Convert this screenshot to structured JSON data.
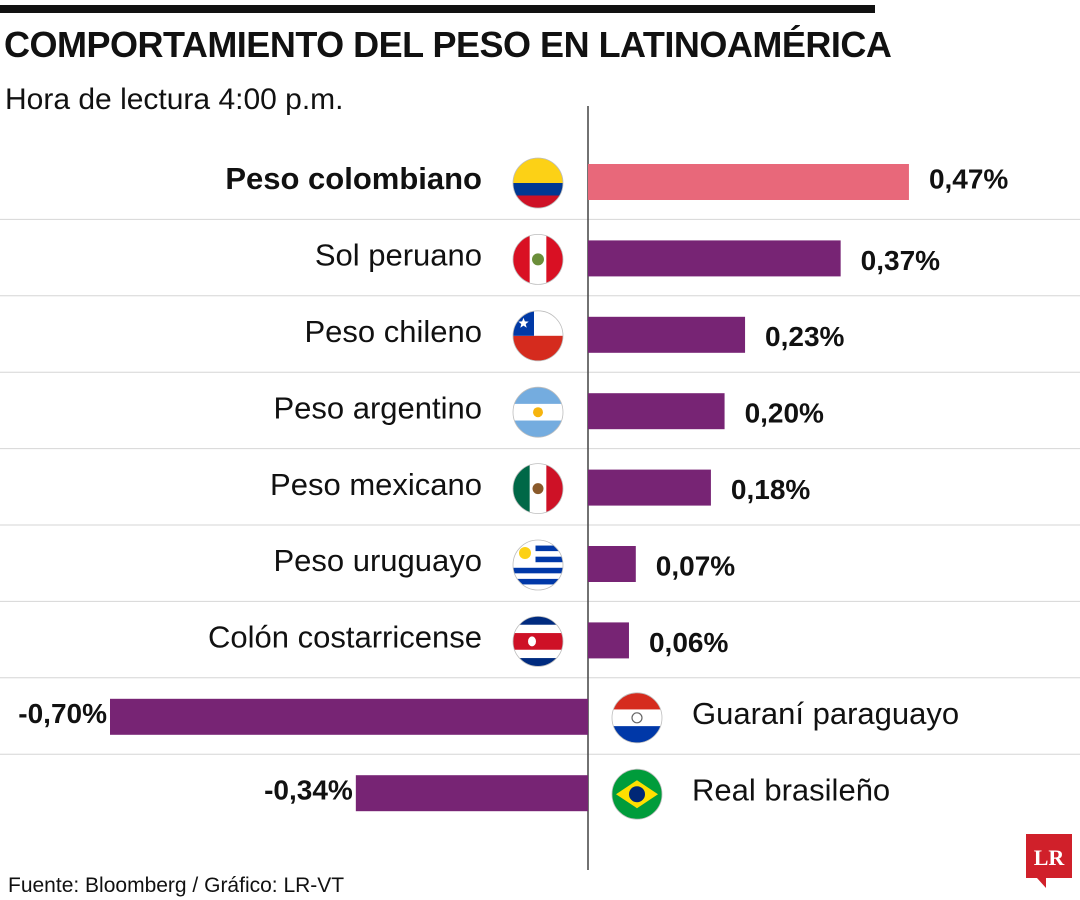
{
  "header": {
    "title": "COMPORTAMIENTO DEL PESO EN LATINOAMÉRICA",
    "subtitle": "Hora de lectura 4:00 p.m."
  },
  "footer": {
    "source": "Fuente: Bloomberg / Gráfico: LR-VT",
    "logo_text": "LR"
  },
  "colors": {
    "highlight": "#E8687A",
    "bar": "#772474",
    "logo": "#D0202A"
  },
  "chart_data": {
    "type": "bar",
    "orientation": "horizontal",
    "unit": "%",
    "highlight_category": "Peso colombiano",
    "categories": [
      "Peso colombiano",
      "Sol peruano",
      "Peso chileno",
      "Peso argentino",
      "Peso mexicano",
      "Peso uruguayo",
      "Colón costarricense",
      "Guaraní paraguayo",
      "Real brasileño"
    ],
    "values": [
      0.47,
      0.37,
      0.23,
      0.2,
      0.18,
      0.07,
      0.06,
      -0.7,
      -0.34
    ],
    "value_labels": [
      "0,47%",
      "0,37%",
      "0,23%",
      "0,20%",
      "0,18%",
      "0,07%",
      "0,06%",
      "-0,70%",
      "-0,34%"
    ],
    "flags": [
      "colombia-flag-icon",
      "peru-flag-icon",
      "chile-flag-icon",
      "argentina-flag-icon",
      "mexico-flag-icon",
      "uruguay-flag-icon",
      "costa-rica-flag-icon",
      "paraguay-flag-icon",
      "brazil-flag-icon"
    ],
    "xlim": [
      -0.7,
      0.47
    ],
    "grid": false
  }
}
